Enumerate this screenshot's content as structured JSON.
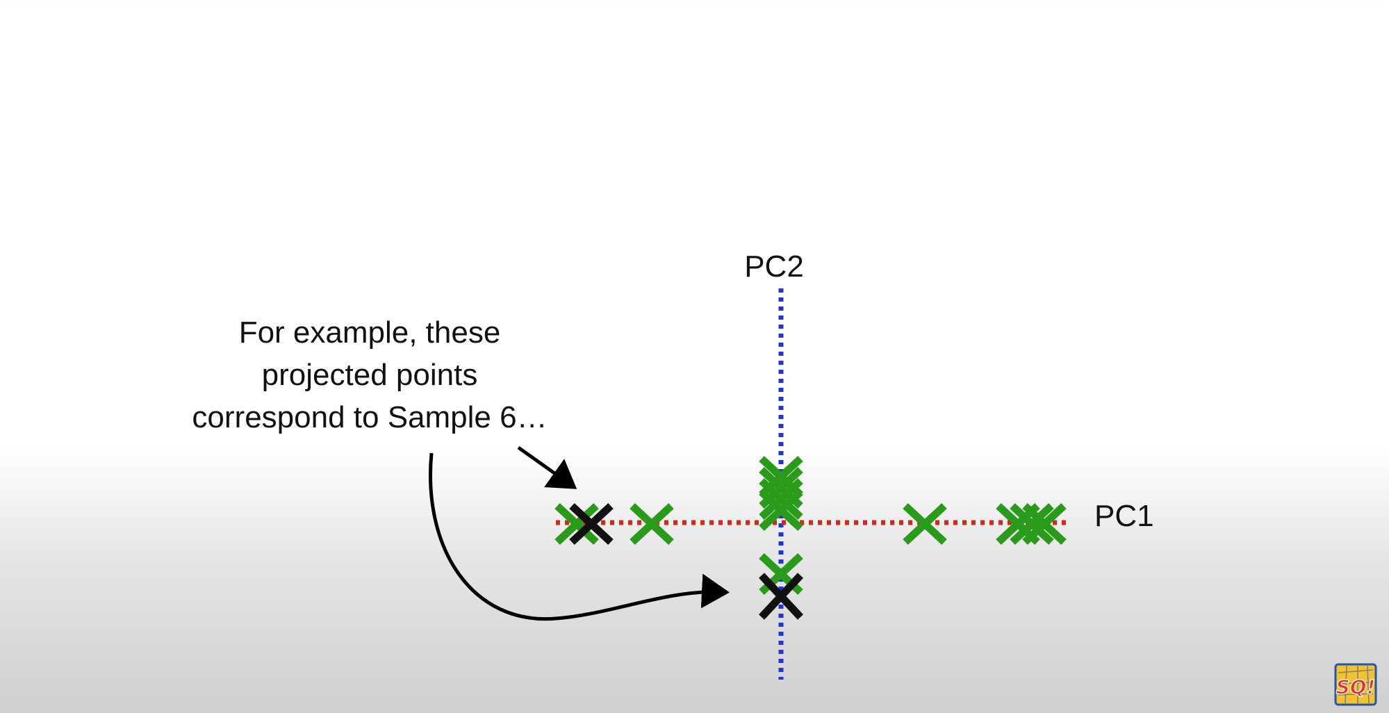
{
  "diagram": {
    "axes": {
      "pc1": {
        "label": "PC1",
        "color": "#cc2b1d",
        "style": "dotted"
      },
      "pc2": {
        "label": "PC2",
        "color": "#1f35d6",
        "style": "dotted"
      }
    },
    "annotation": {
      "lines": [
        "For example, these",
        "projected points",
        "correspond to Sample 6…"
      ]
    },
    "colors": {
      "point": "#2a9a1a",
      "highlight": "#111111",
      "arrow": "#000000"
    }
  },
  "logo": {
    "name": "statquest-logo-icon",
    "text": "SQ!",
    "colors": [
      "#e8312a",
      "#f2c230",
      "#2456a8"
    ]
  }
}
